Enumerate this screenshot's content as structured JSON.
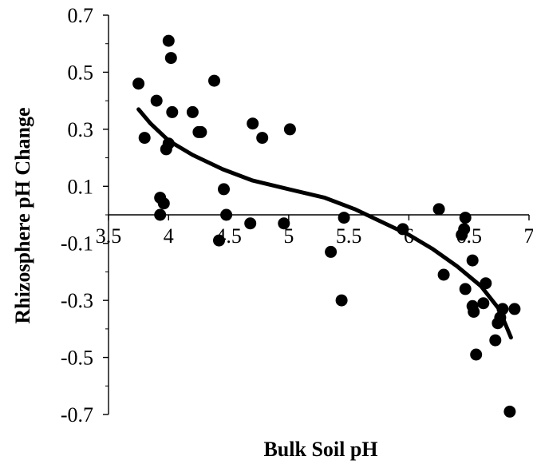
{
  "chart_data": {
    "type": "scatter",
    "title": "",
    "xlabel": "Bulk Soil pH",
    "ylabel": "Rhizosphere pH Change",
    "xlim": [
      3.5,
      7
    ],
    "ylim": [
      -0.7,
      0.7
    ],
    "x_ticks": [
      "3.5",
      "4",
      "4.5",
      "5",
      "5.5",
      "6",
      "6.5",
      "7"
    ],
    "y_ticks": [
      "0.7",
      "0.5",
      "0.3",
      "0.1",
      "-0.1",
      "-0.3",
      "-0.5",
      "-0.7"
    ],
    "grid": false,
    "legend": "none",
    "colors": {
      "marker": "#000000",
      "trend": "#000000",
      "axis": "#000000"
    },
    "series": [
      {
        "kind": "points",
        "points": [
          [
            3.75,
            0.46
          ],
          [
            3.8,
            0.27
          ],
          [
            3.9,
            0.4
          ],
          [
            3.93,
            0.06
          ],
          [
            3.93,
            0.0
          ],
          [
            3.96,
            0.04
          ],
          [
            3.98,
            0.23
          ],
          [
            4.0,
            0.61
          ],
          [
            4.0,
            0.25
          ],
          [
            4.02,
            0.55
          ],
          [
            4.03,
            0.36
          ],
          [
            4.2,
            0.36
          ],
          [
            4.25,
            0.29
          ],
          [
            4.27,
            0.29
          ],
          [
            4.38,
            0.47
          ],
          [
            4.42,
            -0.09
          ],
          [
            4.46,
            0.09
          ],
          [
            4.48,
            0.0
          ],
          [
            4.68,
            -0.03
          ],
          [
            4.7,
            0.32
          ],
          [
            4.78,
            0.27
          ],
          [
            4.96,
            -0.03
          ],
          [
            5.01,
            0.3
          ],
          [
            5.35,
            -0.13
          ],
          [
            5.44,
            -0.3
          ],
          [
            5.46,
            -0.01
          ],
          [
            5.95,
            -0.05
          ],
          [
            6.25,
            0.02
          ],
          [
            6.29,
            -0.21
          ],
          [
            6.44,
            -0.07
          ],
          [
            6.46,
            -0.05
          ],
          [
            6.47,
            -0.01
          ],
          [
            6.47,
            -0.26
          ],
          [
            6.53,
            -0.16
          ],
          [
            6.53,
            -0.32
          ],
          [
            6.54,
            -0.34
          ],
          [
            6.56,
            -0.49
          ],
          [
            6.62,
            -0.31
          ],
          [
            6.64,
            -0.24
          ],
          [
            6.72,
            -0.44
          ],
          [
            6.74,
            -0.38
          ],
          [
            6.76,
            -0.36
          ],
          [
            6.78,
            -0.33
          ],
          [
            6.84,
            -0.69
          ],
          [
            6.88,
            -0.33
          ]
        ]
      },
      {
        "kind": "trend",
        "points": [
          [
            3.75,
            0.37
          ],
          [
            3.85,
            0.32
          ],
          [
            4.0,
            0.26
          ],
          [
            4.2,
            0.21
          ],
          [
            4.45,
            0.16
          ],
          [
            4.7,
            0.12
          ],
          [
            5.0,
            0.09
          ],
          [
            5.3,
            0.06
          ],
          [
            5.55,
            0.02
          ],
          [
            5.8,
            -0.03
          ],
          [
            6.0,
            -0.07
          ],
          [
            6.2,
            -0.12
          ],
          [
            6.4,
            -0.18
          ],
          [
            6.6,
            -0.25
          ],
          [
            6.75,
            -0.33
          ],
          [
            6.85,
            -0.43
          ]
        ]
      }
    ]
  }
}
